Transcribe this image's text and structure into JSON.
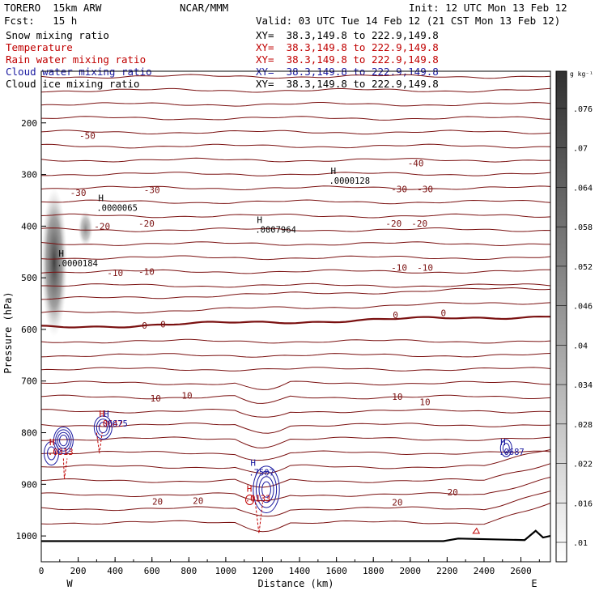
{
  "header": {
    "model": "TORERO  15km ARW",
    "center": "NCAR/MMM",
    "init": "Init: 12 UTC Mon 13 Feb 12",
    "fcst": "Fcst:   15 h",
    "valid": "Valid: 03 UTC Tue 14 Feb 12 (21 CST Mon 13 Feb 12)"
  },
  "fields": [
    {
      "name": "Snow mixing ratio",
      "xy": "XY=  38.3,149.8 to 222.9,149.8",
      "color": "#000000"
    },
    {
      "name": "Temperature",
      "xy": "XY=  38.3,149.8 to 222.9,149.8",
      "color": "#c00000"
    },
    {
      "name": "Rain water mixing ratio",
      "xy": "XY=  38.3,149.8 to 222.9,149.8",
      "color": "#c00000"
    },
    {
      "name": "Cloud water mixing ratio",
      "xy": "XY=  38.3,149.8 to 222.9,149.8",
      "color": "#1a1aa0"
    },
    {
      "name": "Cloud ice mixing ratio",
      "xy": "XY=  38.3,149.8 to 222.9,149.8",
      "color": "#000000"
    }
  ],
  "chart_data": {
    "type": "contour",
    "xlabel": "Distance (km)",
    "ylabel": "Pressure (hPa)",
    "xlim": [
      0,
      2760
    ],
    "ylim": [
      1050,
      100
    ],
    "x_ticks": [
      0,
      200,
      400,
      600,
      800,
      1000,
      1200,
      1400,
      1600,
      1800,
      2000,
      2200,
      2400,
      2600
    ],
    "y_ticks": [
      200,
      300,
      400,
      500,
      600,
      700,
      800,
      900,
      1000
    ],
    "left_end": "W",
    "right_end": "E",
    "colorbar": {
      "unit": "g kg⁻¹",
      "ticks": [
        ".01",
        ".016",
        ".022",
        ".028",
        ".034",
        ".04",
        ".046",
        ".052",
        ".058",
        ".064",
        ".07",
        ".076"
      ]
    },
    "temperature_labels": [
      {
        "text": "-50",
        "x": 250,
        "p": 225
      },
      {
        "text": "-40",
        "x": 2030,
        "p": 278
      },
      {
        "text": "-30",
        "x": 200,
        "p": 335
      },
      {
        "text": "-30",
        "x": 600,
        "p": 330
      },
      {
        "text": "-30",
        "x": 1940,
        "p": 328
      },
      {
        "text": "-30",
        "x": 2080,
        "p": 328
      },
      {
        "text": "-20",
        "x": 330,
        "p": 400
      },
      {
        "text": "-20",
        "x": 570,
        "p": 395
      },
      {
        "text": "-20",
        "x": 1910,
        "p": 395
      },
      {
        "text": "-20",
        "x": 2050,
        "p": 395
      },
      {
        "text": "-10",
        "x": 400,
        "p": 490
      },
      {
        "text": "-10",
        "x": 570,
        "p": 488
      },
      {
        "text": "-10",
        "x": 1940,
        "p": 480
      },
      {
        "text": "-10",
        "x": 2080,
        "p": 480
      },
      {
        "text": "0",
        "x": 560,
        "p": 592
      },
      {
        "text": "0",
        "x": 660,
        "p": 590
      },
      {
        "text": "0",
        "x": 1920,
        "p": 572
      },
      {
        "text": "0",
        "x": 2180,
        "p": 568
      },
      {
        "text": "10",
        "x": 620,
        "p": 733
      },
      {
        "text": "10",
        "x": 790,
        "p": 728
      },
      {
        "text": "10",
        "x": 1930,
        "p": 730
      },
      {
        "text": "10",
        "x": 2080,
        "p": 740
      },
      {
        "text": "20",
        "x": 630,
        "p": 933
      },
      {
        "text": "20",
        "x": 850,
        "p": 932
      },
      {
        "text": "20",
        "x": 1930,
        "p": 935
      },
      {
        "text": "20",
        "x": 2230,
        "p": 915
      }
    ],
    "maxima": [
      {
        "text": ".0000128",
        "x": 1630,
        "p": 315,
        "color": "#000000"
      },
      {
        "text": ".0000065",
        "x": 370,
        "p": 367,
        "color": "#000000"
      },
      {
        "text": ".0007964",
        "x": 1230,
        "p": 410,
        "color": "#000000"
      },
      {
        "text": ".0000184",
        "x": 155,
        "p": 475,
        "color": "#000000"
      },
      {
        "text": ".0313",
        "x": 105,
        "p": 840,
        "color": "#c00000"
      },
      {
        "text": ".0642",
        "x": 375,
        "p": 785,
        "color": "#c00000"
      },
      {
        "text": ".0675",
        "x": 400,
        "p": 785,
        "color": "#1a1aa0"
      },
      {
        "text": ".0687",
        "x": 2550,
        "p": 840,
        "color": "#1a1aa0"
      },
      {
        "text": ".7507",
        "x": 1195,
        "p": 880,
        "color": "#1a1aa0"
      },
      {
        "text": ".0133",
        "x": 1175,
        "p": 930,
        "color": "#c00000"
      }
    ],
    "max_marker": "H"
  }
}
